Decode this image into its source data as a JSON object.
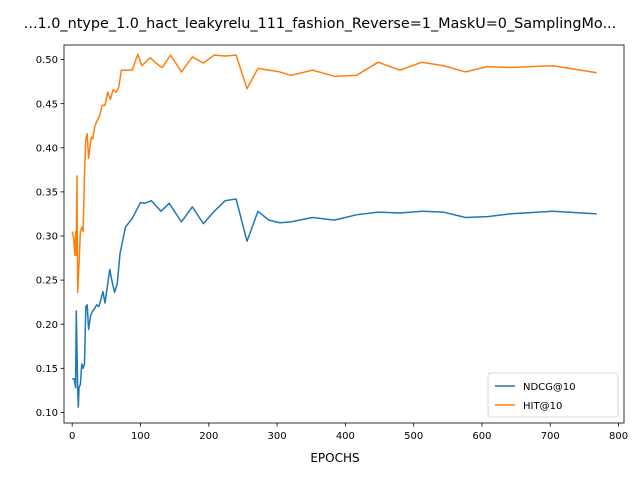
{
  "chart_data": {
    "type": "line",
    "title": "...1.0_ntype_1.0_hact_leakyrelu_111_fashion_Reverse=1_MaskU=0_SamplingMo...",
    "xlabel": "EPOCHS",
    "ylabel": "",
    "xlim": [
      -12,
      808
    ],
    "ylim": [
      0.088,
      0.5165
    ],
    "xticks": [
      0,
      100,
      200,
      300,
      400,
      500,
      600,
      700,
      800
    ],
    "yticks": [
      0.1,
      0.15,
      0.2,
      0.25,
      0.3,
      0.35,
      0.4,
      0.45,
      0.5
    ],
    "ytick_labels": [
      "0.10",
      "0.15",
      "0.20",
      "0.25",
      "0.30",
      "0.35",
      "0.40",
      "0.45",
      "0.50"
    ],
    "legend_position": "lower-right",
    "series": [
      {
        "name": "NDCG@10",
        "color": "#1f77b4",
        "points": [
          [
            0,
            0.138
          ],
          [
            3,
            0.138
          ],
          [
            5,
            0.128
          ],
          [
            6,
            0.215
          ],
          [
            8,
            0.128
          ],
          [
            9,
            0.106
          ],
          [
            10,
            0.128
          ],
          [
            12,
            0.132
          ],
          [
            14,
            0.155
          ],
          [
            16,
            0.15
          ],
          [
            18,
            0.155
          ],
          [
            20,
            0.22
          ],
          [
            22,
            0.222
          ],
          [
            24,
            0.194
          ],
          [
            27,
            0.21
          ],
          [
            30,
            0.215
          ],
          [
            33,
            0.218
          ],
          [
            36,
            0.222
          ],
          [
            39,
            0.22
          ],
          [
            42,
            0.228
          ],
          [
            45,
            0.237
          ],
          [
            48,
            0.224
          ],
          [
            51,
            0.24
          ],
          [
            55,
            0.262
          ],
          [
            58,
            0.25
          ],
          [
            62,
            0.236
          ],
          [
            66,
            0.246
          ],
          [
            70,
            0.28
          ],
          [
            78,
            0.31
          ],
          [
            88,
            0.32
          ],
          [
            100,
            0.338
          ],
          [
            106,
            0.337
          ],
          [
            116,
            0.34
          ],
          [
            130,
            0.328
          ],
          [
            142,
            0.337
          ],
          [
            160,
            0.316
          ],
          [
            176,
            0.333
          ],
          [
            192,
            0.314
          ],
          [
            208,
            0.328
          ],
          [
            224,
            0.34
          ],
          [
            240,
            0.342
          ],
          [
            256,
            0.294
          ],
          [
            272,
            0.328
          ],
          [
            288,
            0.318
          ],
          [
            304,
            0.315
          ],
          [
            320,
            0.316
          ],
          [
            352,
            0.321
          ],
          [
            384,
            0.318
          ],
          [
            416,
            0.324
          ],
          [
            448,
            0.327
          ],
          [
            480,
            0.326
          ],
          [
            512,
            0.328
          ],
          [
            544,
            0.327
          ],
          [
            576,
            0.321
          ],
          [
            608,
            0.322
          ],
          [
            640,
            0.325
          ],
          [
            704,
            0.328
          ],
          [
            768,
            0.325
          ]
        ]
      },
      {
        "name": "HIT@10",
        "color": "#ff7f0e",
        "points": [
          [
            0,
            0.305
          ],
          [
            2,
            0.298
          ],
          [
            4,
            0.278
          ],
          [
            5,
            0.305
          ],
          [
            6,
            0.278
          ],
          [
            7,
            0.368
          ],
          [
            8,
            0.236
          ],
          [
            10,
            0.268
          ],
          [
            12,
            0.305
          ],
          [
            14,
            0.31
          ],
          [
            16,
            0.305
          ],
          [
            18,
            0.37
          ],
          [
            20,
            0.41
          ],
          [
            22,
            0.416
          ],
          [
            24,
            0.388
          ],
          [
            26,
            0.4
          ],
          [
            28,
            0.412
          ],
          [
            30,
            0.41
          ],
          [
            33,
            0.424
          ],
          [
            36,
            0.43
          ],
          [
            40,
            0.436
          ],
          [
            44,
            0.448
          ],
          [
            48,
            0.448
          ],
          [
            52,
            0.463
          ],
          [
            56,
            0.455
          ],
          [
            60,
            0.466
          ],
          [
            64,
            0.463
          ],
          [
            68,
            0.468
          ],
          [
            72,
            0.488
          ],
          [
            80,
            0.488
          ],
          [
            88,
            0.488
          ],
          [
            96,
            0.506
          ],
          [
            102,
            0.493
          ],
          [
            114,
            0.502
          ],
          [
            126,
            0.494
          ],
          [
            132,
            0.491
          ],
          [
            144,
            0.505
          ],
          [
            160,
            0.486
          ],
          [
            176,
            0.503
          ],
          [
            192,
            0.496
          ],
          [
            208,
            0.505
          ],
          [
            224,
            0.504
          ],
          [
            240,
            0.505
          ],
          [
            256,
            0.467
          ],
          [
            272,
            0.49
          ],
          [
            288,
            0.488
          ],
          [
            304,
            0.486
          ],
          [
            320,
            0.482
          ],
          [
            352,
            0.488
          ],
          [
            384,
            0.481
          ],
          [
            416,
            0.482
          ],
          [
            448,
            0.497
          ],
          [
            480,
            0.488
          ],
          [
            512,
            0.497
          ],
          [
            544,
            0.493
          ],
          [
            576,
            0.486
          ],
          [
            608,
            0.492
          ],
          [
            640,
            0.491
          ],
          [
            704,
            0.493
          ],
          [
            768,
            0.485
          ]
        ]
      }
    ]
  }
}
